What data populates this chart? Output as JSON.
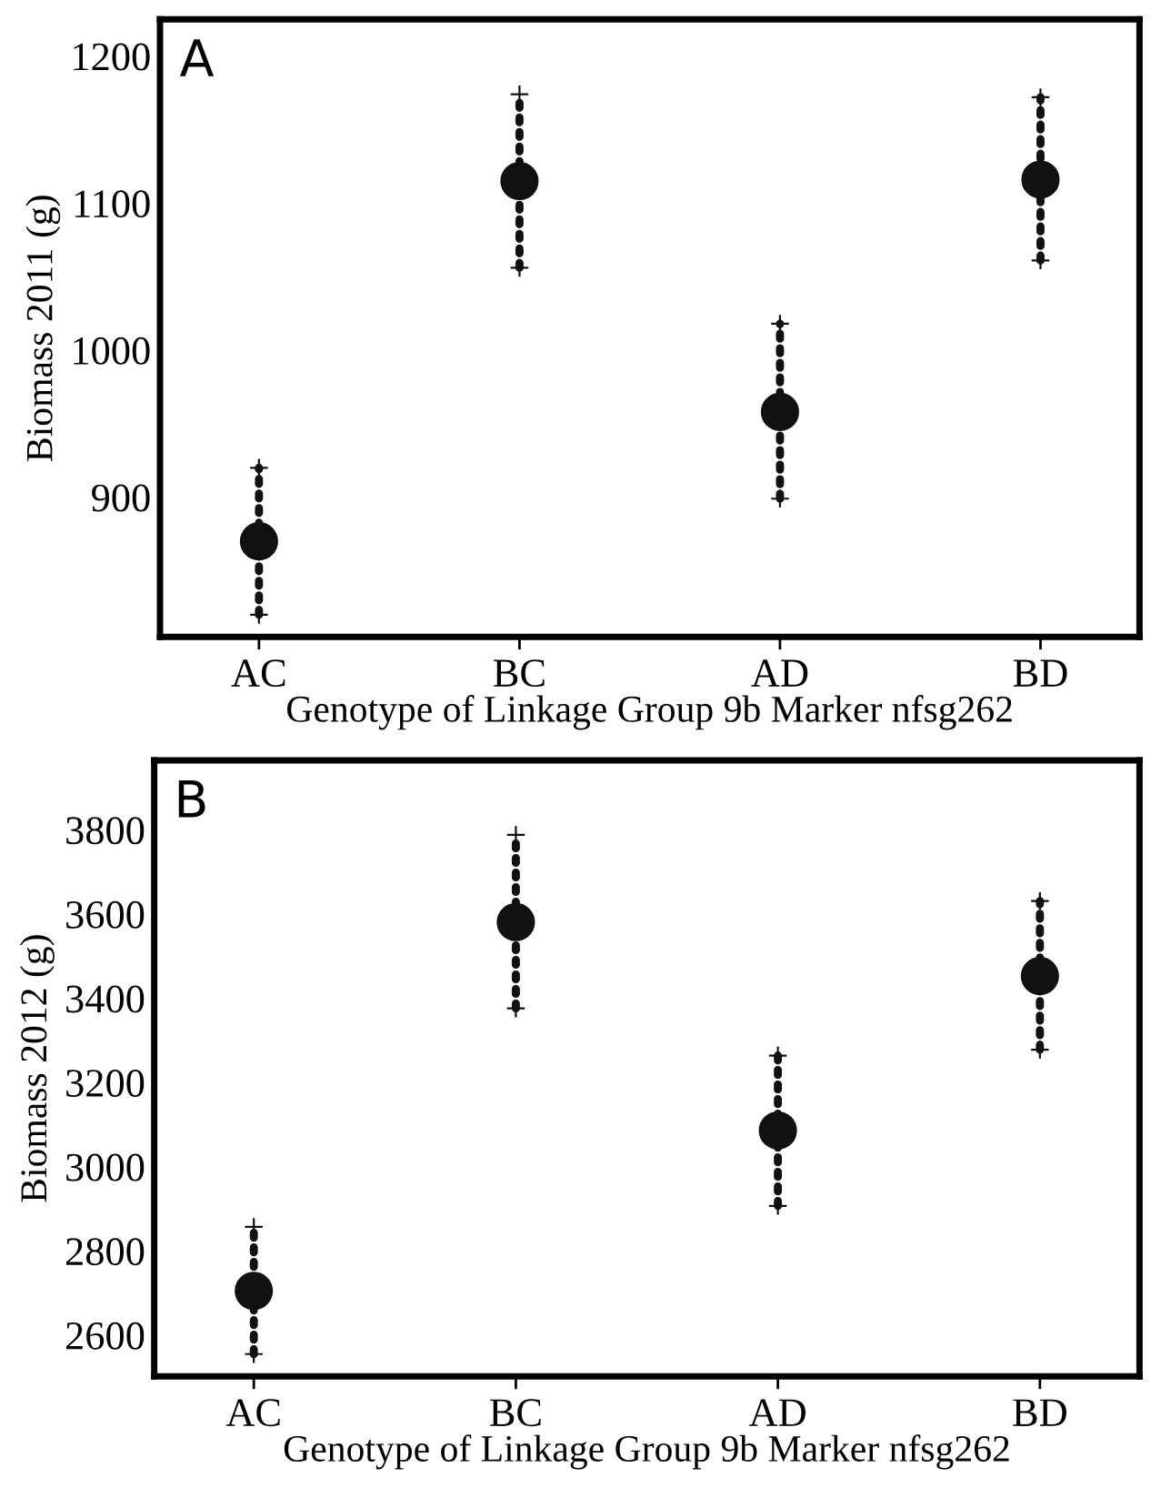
{
  "chart_data": [
    {
      "type": "scatter",
      "title": "A",
      "xlabel": "Genotype of Linkage Group 9b Marker nfsg262",
      "ylabel": "Biomass 2011 (g)",
      "categories": [
        "AC",
        "BC",
        "AD",
        "BD"
      ],
      "values": [
        870,
        1115,
        958,
        1116
      ],
      "color": "#111111",
      "marker": "circle",
      "errors": [
        [
          820,
          920
        ],
        [
          1056,
          1174
        ],
        [
          899,
          1018
        ],
        [
          1061,
          1172
        ]
      ],
      "ylim": [
        805,
        1225
      ],
      "yticks": [
        900,
        1000,
        1100,
        1200
      ],
      "grid": false,
      "legend": false
    },
    {
      "type": "scatter",
      "title": "B",
      "xlabel": "Genotype of Linkage Group 9b Marker nfsg262",
      "ylabel": "Biomass 2012 (g)",
      "categories": [
        "AC",
        "BC",
        "AD",
        "BD"
      ],
      "values": [
        2705,
        3581,
        3086,
        3453
      ],
      "color": "#111111",
      "marker": "circle",
      "errors": [
        [
          2555,
          2857
        ],
        [
          3376,
          3788
        ],
        [
          2907,
          3264
        ],
        [
          3278,
          3631
        ]
      ],
      "ylim": [
        2502,
        3965
      ],
      "yticks": [
        2600,
        2800,
        3000,
        3200,
        3400,
        3600,
        3800
      ],
      "grid": false,
      "legend": false
    }
  ]
}
